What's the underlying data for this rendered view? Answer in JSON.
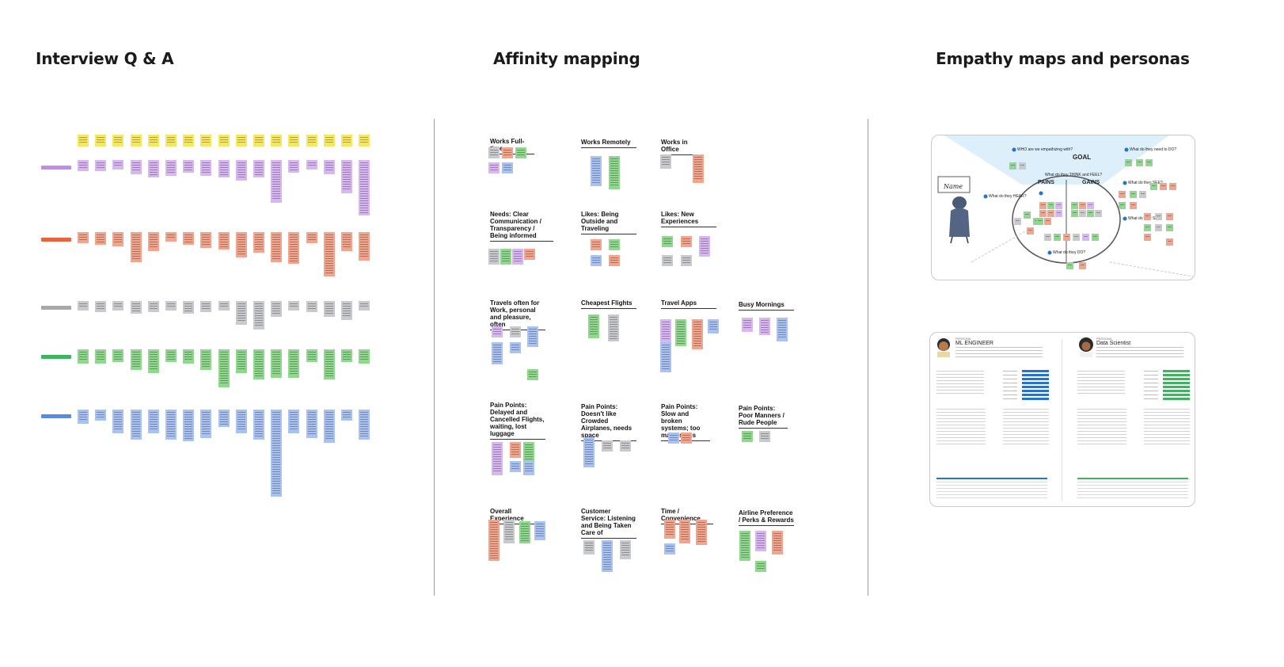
{
  "titles": {
    "interview": "Interview Q & A",
    "affinity": "Affinity mapping",
    "empathy": "Empathy maps and personas"
  },
  "colors": {
    "yellow": "#f5e663",
    "purple": "#d8b6f2",
    "salmon": "#f2a58c",
    "gray": "#c9cacd",
    "green": "#8fd88e",
    "blue": "#a9c2f2",
    "label_purple": "#c58be8",
    "label_orange": "#e8643d",
    "label_gray": "#a8a8a8",
    "label_green": "#3cb55e",
    "label_blue": "#4f8fe6",
    "accent_blue": "#1f74d6"
  },
  "affinity_groups": [
    "Works Full-time",
    "Works Remotely",
    "Works in Office",
    "Needs: Clear Communication / Transparency / Being informed",
    "Likes: Being Outside and Traveling",
    "Likes: New Experiences",
    "Travels often for Work, personal and pleasure, often",
    "Cheapest Flights",
    "Travel Apps",
    "Busy Mornings",
    "Pain Points: Delayed and Cancelled Flights, waiting, lost luggage",
    "Pain Points: Doesn't like Crowded Airplanes, needs space",
    "Pain Points: Slow and broken systems; too many steps",
    "Pain Points: Poor Manners / Rude People",
    "Overall Experience",
    "Customer Service: Listening and Being Taken Care of",
    "Time / Convenience",
    "Airline Preference / Perks & Rewards"
  ],
  "empathy_map": {
    "goal": "GOAL",
    "pains": "PAINS",
    "gains": "GAINS",
    "name_card": "Name",
    "q_who": "WHO are we empathizing with?",
    "q_need": "What do they need to DO?",
    "q_see": "What do they SEE?",
    "q_say": "What do they SAY?",
    "q_do": "What do they DO?",
    "q_hear": "What do they HEAR?",
    "q_think": "What do they THINK and FEEL?"
  },
  "personas": [
    {
      "name": "ML ENGINEER",
      "role_tag": "PERSONA"
    },
    {
      "name": "Data Scientist",
      "role_tag": "PERSONA"
    }
  ]
}
